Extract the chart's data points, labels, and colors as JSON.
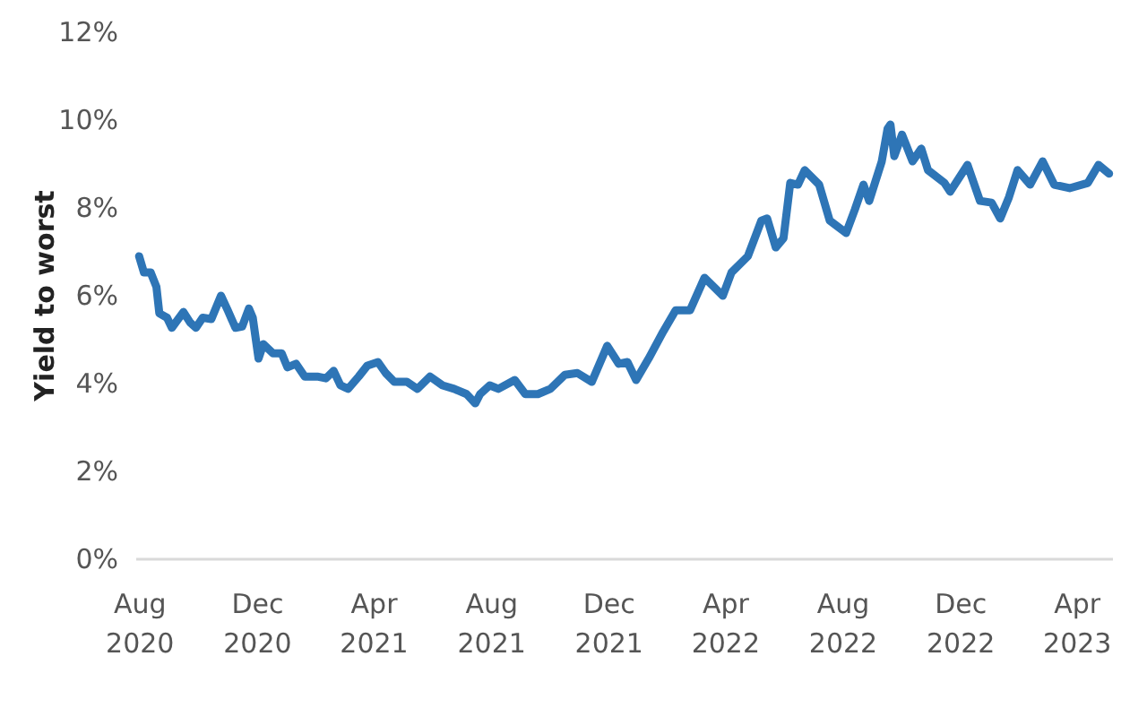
{
  "chart_data": {
    "type": "line",
    "ylabel": "Yield to worst",
    "grid": false,
    "marker": "none",
    "line_style": "solid",
    "xlim": [
      "2020-07-28",
      "2023-05-08"
    ],
    "xticks": [
      {
        "value": "2020-08-01",
        "label": "Aug\n2020"
      },
      {
        "value": "2020-12-01",
        "label": "Dec\n2020"
      },
      {
        "value": "2021-04-01",
        "label": "Apr\n2021"
      },
      {
        "value": "2021-08-01",
        "label": "Aug\n2021"
      },
      {
        "value": "2021-12-01",
        "label": "Dec\n2021"
      },
      {
        "value": "2022-04-01",
        "label": "Apr\n2022"
      },
      {
        "value": "2022-08-01",
        "label": "Aug\n2022"
      },
      {
        "value": "2022-12-01",
        "label": "Dec\n2022"
      },
      {
        "value": "2023-04-01",
        "label": "Apr\n2023"
      }
    ],
    "ylim": [
      0,
      12
    ],
    "yticks": [
      {
        "value": 0,
        "label": "0%"
      },
      {
        "value": 2,
        "label": "2%"
      },
      {
        "value": 4,
        "label": "4%"
      },
      {
        "value": 6,
        "label": "6%"
      },
      {
        "value": 8,
        "label": "8%"
      },
      {
        "value": 10,
        "label": "10%"
      },
      {
        "value": 12,
        "label": "12%"
      }
    ],
    "x": [
      "2020-07-31",
      "2020-08-05",
      "2020-08-12",
      "2020-08-18",
      "2020-08-21",
      "2020-08-29",
      "2020-09-03",
      "2020-09-15",
      "2020-09-22",
      "2020-09-28",
      "2020-10-05",
      "2020-10-14",
      "2020-10-24",
      "2020-10-31",
      "2020-11-08",
      "2020-11-15",
      "2020-11-22",
      "2020-11-26",
      "2020-12-02",
      "2020-12-07",
      "2020-12-17",
      "2020-12-26",
      "2021-01-01",
      "2021-01-10",
      "2021-01-19",
      "2021-02-01",
      "2021-02-10",
      "2021-02-18",
      "2021-02-25",
      "2021-03-05",
      "2021-03-16",
      "2021-03-25",
      "2021-04-05",
      "2021-04-13",
      "2021-04-22",
      "2021-05-05",
      "2021-05-16",
      "2021-05-29",
      "2021-06-11",
      "2021-06-23",
      "2021-07-06",
      "2021-07-15",
      "2021-07-20",
      "2021-07-30",
      "2021-08-08",
      "2021-08-25",
      "2021-09-05",
      "2021-09-18",
      "2021-10-01",
      "2021-10-16",
      "2021-10-29",
      "2021-11-13",
      "2021-11-29",
      "2021-12-11",
      "2021-12-20",
      "2021-12-29",
      "2022-01-11",
      "2022-01-26",
      "2022-02-08",
      "2022-02-23",
      "2022-03-10",
      "2022-03-29",
      "2022-04-07",
      "2022-04-24",
      "2022-05-08",
      "2022-05-14",
      "2022-05-23",
      "2022-05-31",
      "2022-06-07",
      "2022-06-15",
      "2022-06-22",
      "2022-07-07",
      "2022-07-18",
      "2022-08-04",
      "2022-08-13",
      "2022-08-22",
      "2022-08-28",
      "2022-09-10",
      "2022-09-16",
      "2022-09-19",
      "2022-09-23",
      "2022-10-01",
      "2022-10-12",
      "2022-10-21",
      "2022-10-28",
      "2022-11-14",
      "2022-11-20",
      "2022-12-08",
      "2022-12-21",
      "2023-01-02",
      "2023-01-11",
      "2023-01-20",
      "2023-01-29",
      "2023-02-11",
      "2023-02-24",
      "2023-03-08",
      "2023-03-24",
      "2023-04-12",
      "2023-04-23",
      "2023-05-04"
    ],
    "series": [
      {
        "color": "#2e75b6",
        "values": [
          6.9,
          6.53,
          6.53,
          6.2,
          5.6,
          5.5,
          5.27,
          5.63,
          5.39,
          5.27,
          5.5,
          5.47,
          6.0,
          5.67,
          5.27,
          5.3,
          5.71,
          5.5,
          4.57,
          4.9,
          4.69,
          4.69,
          4.37,
          4.45,
          4.16,
          4.16,
          4.12,
          4.29,
          3.96,
          3.88,
          4.16,
          4.41,
          4.49,
          4.24,
          4.04,
          4.04,
          3.88,
          4.16,
          3.96,
          3.88,
          3.76,
          3.55,
          3.76,
          3.96,
          3.88,
          4.08,
          3.76,
          3.76,
          3.88,
          4.2,
          4.24,
          4.04,
          4.86,
          4.45,
          4.49,
          4.08,
          4.57,
          5.18,
          5.67,
          5.67,
          6.41,
          6.0,
          6.53,
          6.9,
          7.71,
          7.76,
          7.1,
          7.31,
          8.57,
          8.53,
          8.86,
          8.53,
          7.71,
          7.43,
          7.96,
          8.53,
          8.16,
          9.06,
          9.8,
          9.9,
          9.18,
          9.67,
          9.06,
          9.35,
          8.86,
          8.57,
          8.37,
          8.98,
          8.16,
          8.12,
          7.76,
          8.24,
          8.86,
          8.53,
          9.06,
          8.53,
          8.45,
          8.57,
          8.98,
          8.78
        ]
      }
    ]
  }
}
